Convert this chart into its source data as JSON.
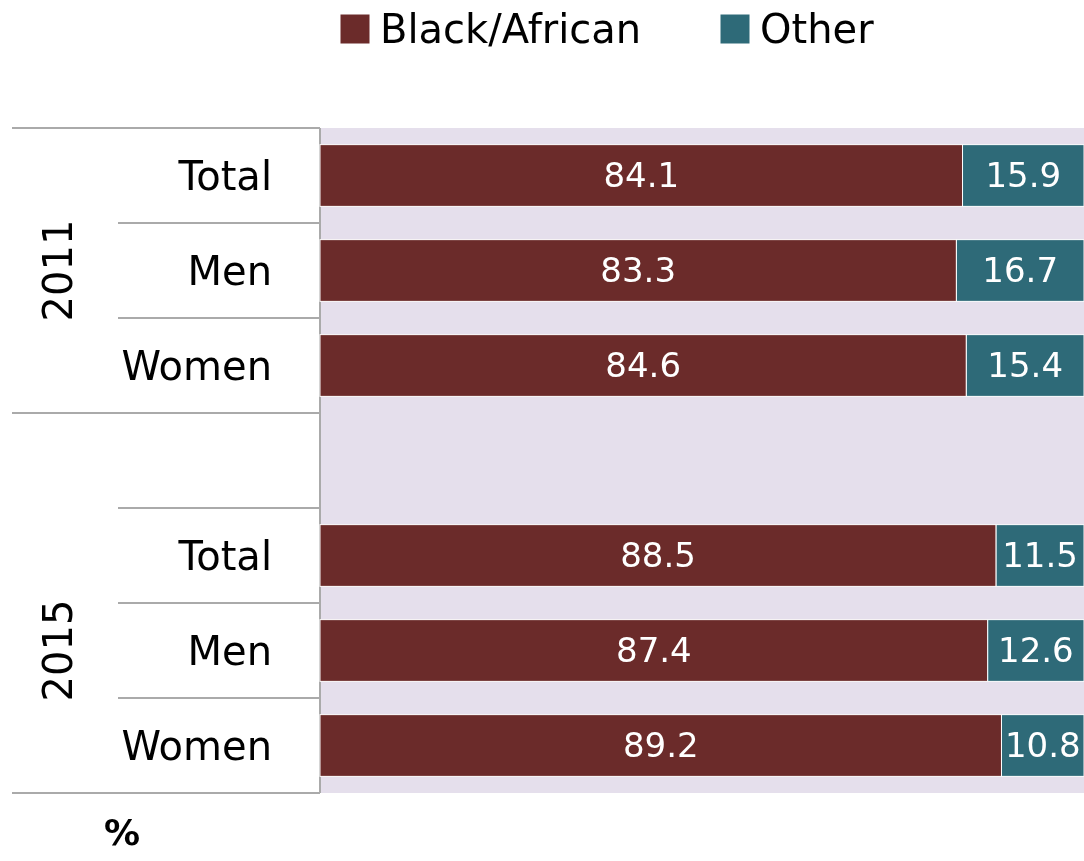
{
  "chart_data": {
    "type": "bar",
    "orientation": "horizontal",
    "stacked": true,
    "data_labels": true,
    "legend": "top",
    "categories": [
      "Total",
      "Men",
      "Women",
      null,
      "Total",
      "Men",
      "Women"
    ],
    "series": [
      {
        "name": "Black/African",
        "color": "#6b2b2a",
        "values": [
          84.1,
          83.3,
          84.6,
          null,
          88.5,
          87.4,
          89.2
        ]
      },
      {
        "name": "Other",
        "color": "#2e6a78",
        "values": [
          15.9,
          16.7,
          15.4,
          null,
          11.5,
          12.6,
          10.8
        ]
      }
    ],
    "annotations": [
      "2011",
      "2015",
      "%"
    ]
  }
}
